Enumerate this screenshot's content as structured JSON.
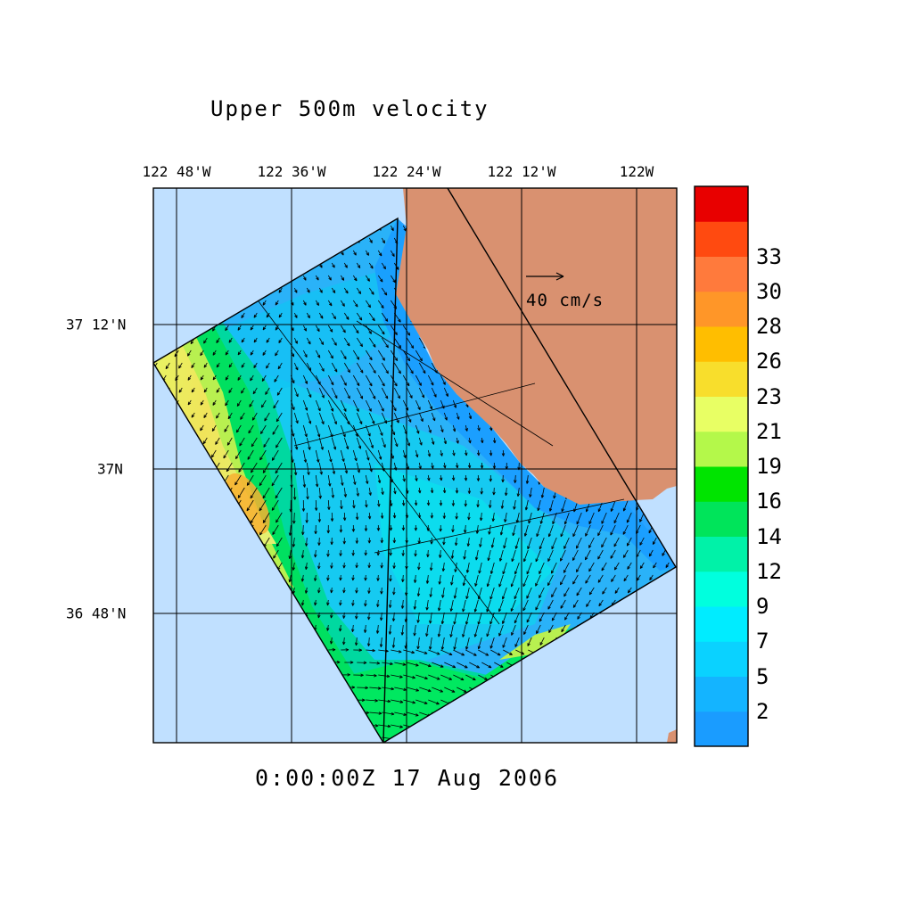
{
  "title": "Upper 500m velocity",
  "timestamp": "0:00:00Z  17 Aug 2006",
  "longitude_labels": [
    "122 48'W",
    "122 36'W",
    "122 24'W",
    "122 12'W",
    "122W"
  ],
  "latitude_labels": [
    "37 12'N",
    "37N",
    "36 48'N"
  ],
  "scale_vector_label": "40 cm/s",
  "colorbar": {
    "labels": [
      "2",
      "5",
      "7",
      "9",
      "12",
      "14",
      "16",
      "19",
      "21",
      "23",
      "26",
      "28",
      "30",
      "33"
    ],
    "colors": [
      "#1a9cff",
      "#14b4ff",
      "#0ad2ff",
      "#00ecff",
      "#00ffde",
      "#00f2a8",
      "#00e45a",
      "#00e400",
      "#b4f84a",
      "#e8ff64",
      "#f8de2c",
      "#ffbe00",
      "#ff9628",
      "#ff7a3c",
      "#ff4a10",
      "#e80000"
    ]
  },
  "colors": {
    "ocean_background": "#c0e0ff",
    "land": "#d99170",
    "boundary_line": "#000000"
  }
}
